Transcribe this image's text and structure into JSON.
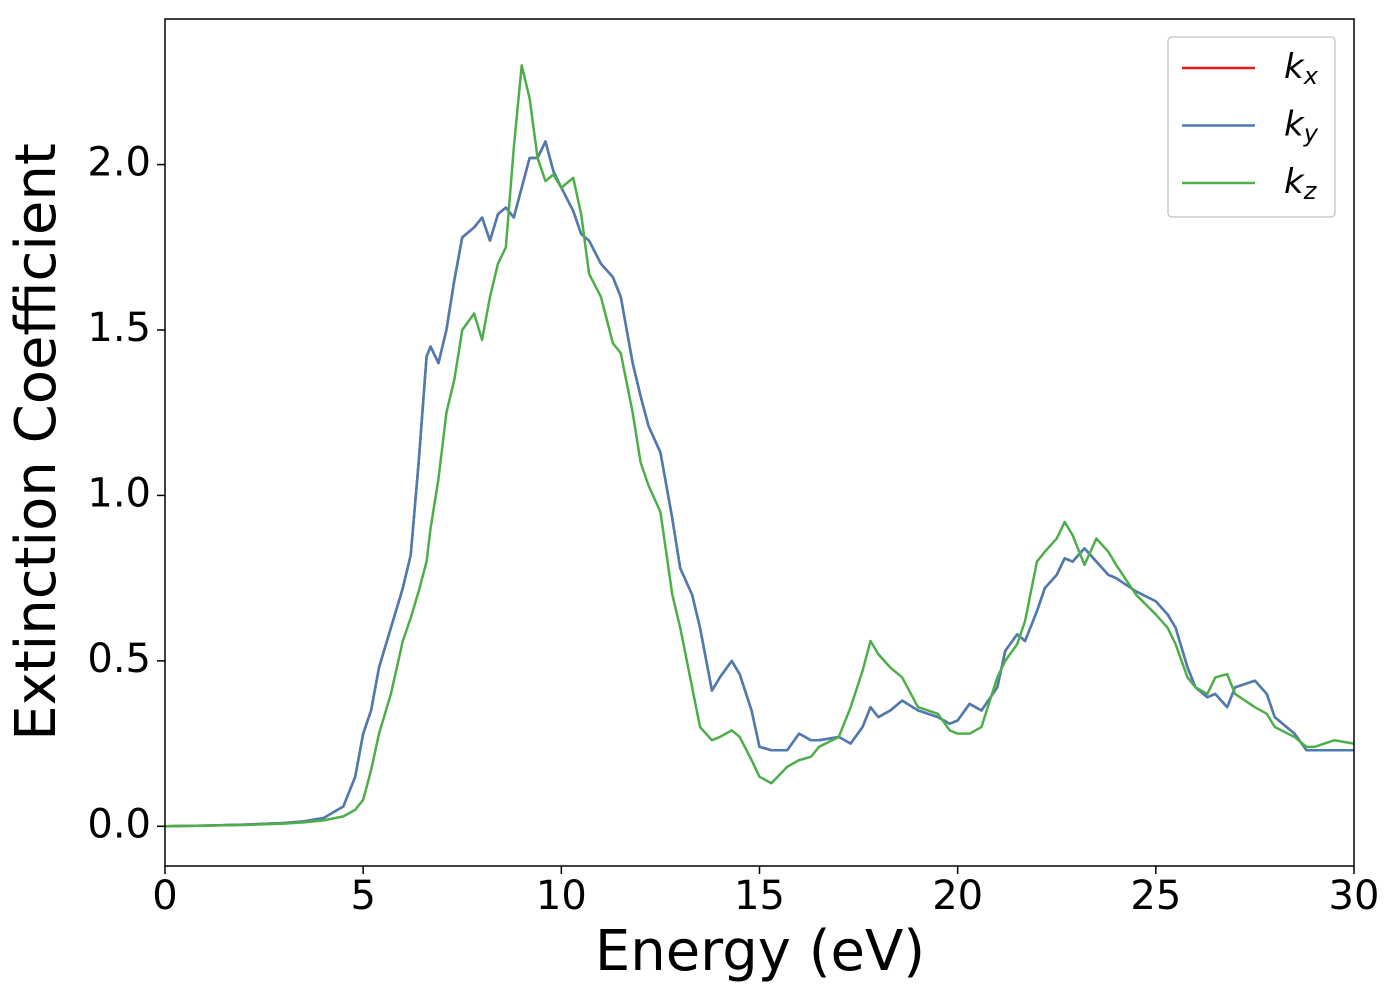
{
  "chart_data": {
    "type": "line",
    "xlabel": "Energy (eV)",
    "ylabel": "Extinction Coefficient",
    "x": [
      0,
      1,
      2,
      3,
      3.5,
      4,
      4.5,
      4.8,
      5,
      5.2,
      5.4,
      5.7,
      6,
      6.2,
      6.4,
      6.6,
      6.7,
      6.9,
      7.1,
      7.3,
      7.5,
      7.8,
      8,
      8.2,
      8.4,
      8.6,
      8.8,
      9,
      9.2,
      9.4,
      9.6,
      9.8,
      10,
      10.3,
      10.5,
      10.7,
      11,
      11.3,
      11.5,
      11.8,
      12,
      12.2,
      12.5,
      12.8,
      13,
      13.3,
      13.5,
      13.8,
      14,
      14.3,
      14.5,
      14.8,
      15,
      15.3,
      15.7,
      16,
      16.3,
      16.5,
      17,
      17.3,
      17.6,
      17.8,
      18,
      18.3,
      18.6,
      19,
      19.5,
      19.8,
      20,
      20.3,
      20.6,
      21,
      21.2,
      21.5,
      21.7,
      22,
      22.2,
      22.5,
      22.7,
      22.9,
      23.2,
      23.5,
      23.8,
      24,
      24.5,
      25,
      25.3,
      25.5,
      25.8,
      26,
      26.3,
      26.5,
      26.8,
      27,
      27.5,
      27.8,
      28,
      28.5,
      28.8,
      29,
      29.5,
      30
    ],
    "series": [
      {
        "name": "kx",
        "color": "#e41a1c",
        "values": [
          0,
          0.002,
          0.005,
          0.01,
          0.015,
          0.025,
          0.06,
          0.15,
          0.28,
          0.35,
          0.48,
          0.6,
          0.72,
          0.82,
          1.1,
          1.42,
          1.45,
          1.4,
          1.5,
          1.65,
          1.78,
          1.81,
          1.84,
          1.77,
          1.85,
          1.87,
          1.84,
          1.93,
          2.02,
          2.02,
          2.07,
          1.98,
          1.93,
          1.86,
          1.79,
          1.77,
          1.7,
          1.66,
          1.6,
          1.4,
          1.3,
          1.21,
          1.13,
          0.93,
          0.78,
          0.7,
          0.6,
          0.41,
          0.45,
          0.5,
          0.46,
          0.35,
          0.24,
          0.23,
          0.23,
          0.28,
          0.26,
          0.26,
          0.27,
          0.25,
          0.3,
          0.36,
          0.33,
          0.35,
          0.38,
          0.35,
          0.33,
          0.31,
          0.32,
          0.37,
          0.35,
          0.42,
          0.53,
          0.58,
          0.56,
          0.65,
          0.72,
          0.76,
          0.81,
          0.8,
          0.84,
          0.8,
          0.76,
          0.75,
          0.71,
          0.68,
          0.64,
          0.6,
          0.48,
          0.42,
          0.39,
          0.4,
          0.36,
          0.42,
          0.44,
          0.4,
          0.33,
          0.28,
          0.23,
          0.23,
          0.23,
          0.23
        ]
      },
      {
        "name": "ky",
        "color": "#4a7db3",
        "values": [
          0,
          0.002,
          0.005,
          0.01,
          0.015,
          0.025,
          0.06,
          0.15,
          0.28,
          0.35,
          0.48,
          0.6,
          0.72,
          0.82,
          1.1,
          1.42,
          1.45,
          1.4,
          1.5,
          1.65,
          1.78,
          1.81,
          1.84,
          1.77,
          1.85,
          1.87,
          1.84,
          1.93,
          2.02,
          2.02,
          2.07,
          1.98,
          1.93,
          1.86,
          1.79,
          1.77,
          1.7,
          1.66,
          1.6,
          1.4,
          1.3,
          1.21,
          1.13,
          0.93,
          0.78,
          0.7,
          0.6,
          0.41,
          0.45,
          0.5,
          0.46,
          0.35,
          0.24,
          0.23,
          0.23,
          0.28,
          0.26,
          0.26,
          0.27,
          0.25,
          0.3,
          0.36,
          0.33,
          0.35,
          0.38,
          0.35,
          0.33,
          0.31,
          0.32,
          0.37,
          0.35,
          0.42,
          0.53,
          0.58,
          0.56,
          0.65,
          0.72,
          0.76,
          0.81,
          0.8,
          0.84,
          0.8,
          0.76,
          0.75,
          0.71,
          0.68,
          0.64,
          0.6,
          0.48,
          0.42,
          0.39,
          0.4,
          0.36,
          0.42,
          0.44,
          0.4,
          0.33,
          0.28,
          0.23,
          0.23,
          0.23,
          0.23
        ]
      },
      {
        "name": "kz",
        "color": "#4daf4a",
        "values": [
          0,
          0.002,
          0.004,
          0.008,
          0.012,
          0.018,
          0.03,
          0.05,
          0.08,
          0.17,
          0.28,
          0.4,
          0.56,
          0.63,
          0.71,
          0.8,
          0.9,
          1.05,
          1.25,
          1.35,
          1.5,
          1.55,
          1.47,
          1.6,
          1.7,
          1.75,
          2.05,
          2.3,
          2.2,
          2.02,
          1.95,
          1.97,
          1.93,
          1.96,
          1.85,
          1.67,
          1.6,
          1.46,
          1.43,
          1.25,
          1.1,
          1.03,
          0.95,
          0.7,
          0.6,
          0.42,
          0.3,
          0.26,
          0.27,
          0.29,
          0.27,
          0.2,
          0.15,
          0.13,
          0.18,
          0.2,
          0.21,
          0.24,
          0.27,
          0.36,
          0.47,
          0.56,
          0.52,
          0.48,
          0.45,
          0.36,
          0.34,
          0.29,
          0.28,
          0.28,
          0.3,
          0.45,
          0.5,
          0.55,
          0.62,
          0.8,
          0.83,
          0.87,
          0.92,
          0.88,
          0.79,
          0.87,
          0.83,
          0.79,
          0.7,
          0.64,
          0.6,
          0.55,
          0.45,
          0.42,
          0.4,
          0.45,
          0.46,
          0.4,
          0.36,
          0.34,
          0.3,
          0.27,
          0.24,
          0.24,
          0.26,
          0.25
        ]
      }
    ],
    "xlim": [
      0,
      30
    ],
    "xticks": [
      0,
      5,
      10,
      15,
      20,
      25,
      30
    ],
    "ylim": [
      -0.12,
      2.44
    ],
    "yticks": [
      {
        "value": 0,
        "label": "0.0"
      },
      0.5,
      {
        "value": 1,
        "label": "1.0"
      },
      1.5,
      {
        "value": 2,
        "label": "2.0"
      }
    ],
    "legend": "upper right"
  }
}
